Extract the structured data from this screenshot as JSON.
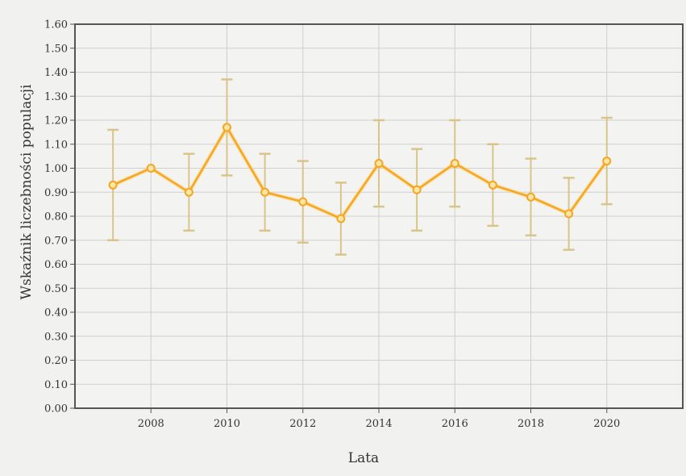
{
  "chart_data": {
    "type": "line",
    "xlabel": "Lata",
    "ylabel": "Wskaźnik liczebności populacji",
    "xlim": [
      2006,
      2022
    ],
    "ylim": [
      0,
      1.6
    ],
    "x_ticks": [
      "2008",
      "2010",
      "2012",
      "2014",
      "2016",
      "2018",
      "2020"
    ],
    "y_ticks": [
      "0.00",
      "0.10",
      "0.20",
      "0.30",
      "0.40",
      "0.50",
      "0.60",
      "0.70",
      "0.80",
      "0.90",
      "1.00",
      "1.10",
      "1.20",
      "1.30",
      "1.40",
      "1.50",
      "1.60"
    ],
    "grid": true,
    "series": [
      {
        "x": [
          2007,
          2008,
          2009,
          2010,
          2011,
          2012,
          2013,
          2014,
          2015,
          2016,
          2017,
          2018,
          2019,
          2020
        ],
        "values": [
          0.93,
          1.0,
          0.9,
          1.17,
          0.9,
          0.86,
          0.79,
          1.02,
          0.91,
          1.02,
          0.93,
          0.88,
          0.81,
          1.03
        ],
        "error_low": [
          0.7,
          null,
          0.74,
          0.97,
          0.74,
          0.69,
          0.64,
          0.84,
          0.74,
          0.84,
          0.76,
          0.72,
          0.66,
          0.85
        ],
        "error_high": [
          1.16,
          null,
          1.06,
          1.37,
          1.06,
          1.03,
          0.94,
          1.2,
          1.08,
          1.2,
          1.1,
          1.04,
          0.96,
          1.21
        ]
      }
    ],
    "colors": {
      "line": "#f5a623",
      "marker_fill": "#fde6a6",
      "error_bar": "#d9c48a",
      "grid": "#cfcfcf",
      "frame": "#555555",
      "background": "#f1f1ef"
    }
  }
}
